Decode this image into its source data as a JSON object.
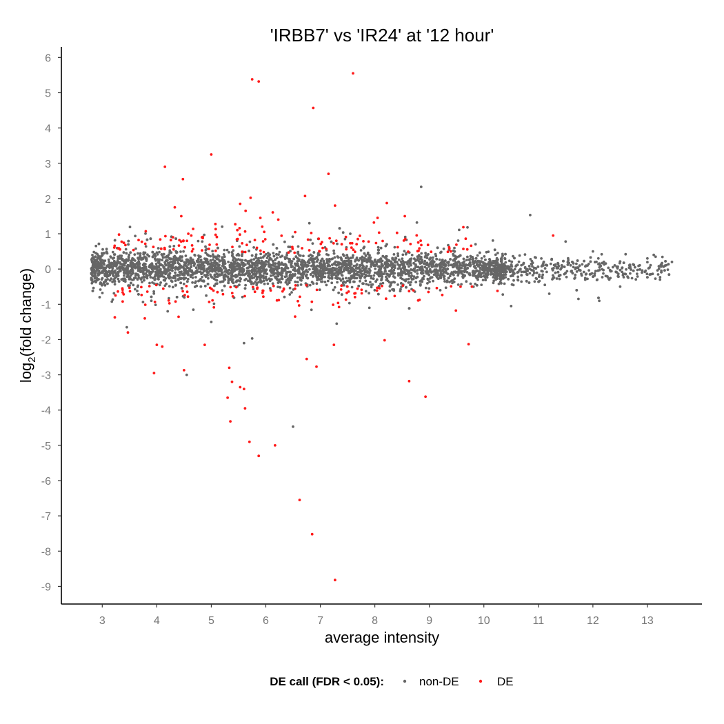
{
  "chart_data": {
    "type": "scatter",
    "title": "'IRBB7' vs 'IR24' at '12 hour'",
    "xlabel": "average intensity",
    "ylabel": {
      "prefix": "log",
      "subscript": "2",
      "suffix": "(fold change)"
    },
    "xlim": [
      2.25,
      14.0
    ],
    "ylim": [
      -9.5,
      6.3
    ],
    "x_ticks": [
      3,
      4,
      5,
      6,
      7,
      8,
      9,
      10,
      11,
      12,
      13
    ],
    "y_ticks": [
      6,
      5,
      4,
      3,
      2,
      1,
      0,
      -1,
      -2,
      -3,
      -4,
      -5,
      -6,
      -7,
      -8,
      -9
    ],
    "grid": false,
    "legend_position": "bottom",
    "legend": {
      "title": "DE call (FDR < 0.05):",
      "entries": [
        {
          "label": "non-DE",
          "color": "#666666"
        },
        {
          "label": "DE",
          "color": "#ff1a1a"
        }
      ]
    },
    "series": [
      {
        "name": "non-DE",
        "color": "#666666",
        "points": [
          [
            8.85,
            2.33
          ],
          [
            10.85,
            1.53
          ],
          [
            7.55,
            1.0
          ],
          [
            9.7,
            1.18
          ],
          [
            6.5,
            -4.47
          ],
          [
            5.6,
            -2.1
          ],
          [
            5.75,
            -1.97
          ],
          [
            7.3,
            -1.55
          ],
          [
            4.55,
            -3.0
          ],
          [
            3.45,
            -1.65
          ],
          [
            10.5,
            -1.05
          ],
          [
            9.2,
            -0.6
          ],
          [
            11.5,
            0.78
          ],
          [
            6.8,
            1.3
          ],
          [
            5.2,
            1.2
          ],
          [
            7.9,
            -1.1
          ],
          [
            4.2,
            -1.2
          ],
          [
            3.9,
            -0.9
          ],
          [
            5.0,
            -1.5
          ],
          [
            12.6,
            0.42
          ],
          [
            13.45,
            0.2
          ],
          [
            13.15,
            0.35
          ],
          [
            12.1,
            0.3
          ],
          [
            12.3,
            -0.3
          ],
          [
            12.9,
            -0.1
          ],
          [
            11.9,
            0.1
          ],
          [
            12.5,
            -0.5
          ],
          [
            11.2,
            -0.7
          ],
          [
            12.0,
            0.5
          ],
          [
            13.0,
            0.3
          ]
        ]
      },
      {
        "name": "DE",
        "color": "#ff1a1a",
        "points": [
          [
            7.6,
            5.55
          ],
          [
            5.75,
            5.38
          ],
          [
            5.87,
            5.32
          ],
          [
            6.87,
            4.57
          ],
          [
            5.0,
            3.25
          ],
          [
            4.15,
            2.9
          ],
          [
            7.15,
            2.7
          ],
          [
            4.48,
            2.55
          ],
          [
            6.72,
            2.07
          ],
          [
            5.72,
            2.02
          ],
          [
            8.22,
            1.87
          ],
          [
            5.53,
            1.85
          ],
          [
            7.27,
            1.8
          ],
          [
            4.33,
            1.75
          ],
          [
            5.63,
            1.65
          ],
          [
            5.9,
            1.45
          ],
          [
            8.55,
            1.5
          ],
          [
            4.45,
            1.5
          ],
          [
            8.05,
            1.45
          ],
          [
            11.27,
            0.95
          ],
          [
            9.72,
            -2.13
          ],
          [
            8.18,
            -2.02
          ],
          [
            8.63,
            -3.18
          ],
          [
            8.93,
            -3.62
          ],
          [
            3.47,
            -1.8
          ],
          [
            4.0,
            -2.15
          ],
          [
            4.1,
            -2.2
          ],
          [
            3.95,
            -2.95
          ],
          [
            4.5,
            -2.87
          ],
          [
            4.88,
            -2.15
          ],
          [
            5.33,
            -2.8
          ],
          [
            5.38,
            -3.2
          ],
          [
            5.53,
            -3.35
          ],
          [
            5.6,
            -3.4
          ],
          [
            5.3,
            -3.65
          ],
          [
            5.62,
            -3.95
          ],
          [
            5.35,
            -4.32
          ],
          [
            5.7,
            -4.9
          ],
          [
            6.17,
            -5.0
          ],
          [
            5.87,
            -5.3
          ],
          [
            6.62,
            -6.55
          ],
          [
            6.85,
            -7.52
          ],
          [
            7.27,
            -8.82
          ],
          [
            6.75,
            -2.55
          ],
          [
            6.93,
            -2.77
          ],
          [
            7.25,
            -2.15
          ],
          [
            9.78,
            -0.5
          ],
          [
            10.25,
            -0.62
          ]
        ]
      }
    ]
  }
}
